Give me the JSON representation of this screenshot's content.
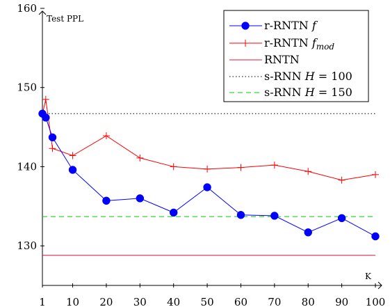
{
  "chart_data": {
    "type": "line",
    "xlabel": "K",
    "ylabel": "Test PPL",
    "xlim": [
      1,
      100
    ],
    "ylim": [
      125,
      160
    ],
    "x_ticks": [
      "1",
      "10",
      "20",
      "30",
      "40",
      "50",
      "60",
      "70",
      "80",
      "90",
      "100"
    ],
    "y_ticks": [
      "130",
      "140",
      "150",
      "160"
    ],
    "x_tick_values": [
      1,
      10,
      20,
      30,
      40,
      50,
      60,
      70,
      80,
      90,
      100
    ],
    "y_tick_values": [
      130,
      140,
      150,
      160
    ],
    "grid": false,
    "legend_position": "top-right",
    "series": [
      {
        "name": "r-RNTN f",
        "legend_main": "r-RNTN ",
        "legend_var": "f",
        "legend_sub": "",
        "color": "#0000ff",
        "marker": "circle",
        "style": "solid",
        "x": [
          1,
          2,
          4,
          10,
          20,
          30,
          40,
          50,
          60,
          70,
          80,
          90,
          100
        ],
        "values": [
          146.7,
          146.2,
          143.7,
          139.6,
          135.7,
          136.0,
          134.2,
          137.4,
          133.9,
          133.8,
          131.7,
          133.5,
          131.2
        ]
      },
      {
        "name": "r-RNTN f_mod",
        "legend_main": "r-RNTN ",
        "legend_var": "f",
        "legend_sub": "mod",
        "color": "#ff0000",
        "marker": "plus",
        "style": "solid",
        "x": [
          1,
          2,
          4,
          10,
          20,
          30,
          40,
          50,
          60,
          70,
          80,
          90,
          100
        ],
        "values": [
          146.6,
          148.5,
          142.3,
          141.4,
          143.9,
          141.1,
          140.0,
          139.7,
          139.9,
          140.2,
          139.4,
          138.3,
          139.0
        ]
      },
      {
        "name": "RNTN",
        "legend_main": "RNTN",
        "legend_var": "",
        "legend_sub": "",
        "color": "#dc143c",
        "marker": "none",
        "style": "solid",
        "constant": 128.8
      },
      {
        "name": "s-RNN H = 100",
        "legend_main": "s-RNN ",
        "legend_var": "H",
        "legend_sub": "",
        "legend_tail": " = 100",
        "color": "#000000",
        "marker": "none",
        "style": "dotted",
        "constant": 146.7
      },
      {
        "name": "s-RNN H = 150",
        "legend_main": "s-RNN ",
        "legend_var": "H",
        "legend_sub": "",
        "legend_tail": " = 150",
        "color": "#00cc00",
        "marker": "none",
        "style": "dashed",
        "constant": 133.7
      }
    ]
  }
}
